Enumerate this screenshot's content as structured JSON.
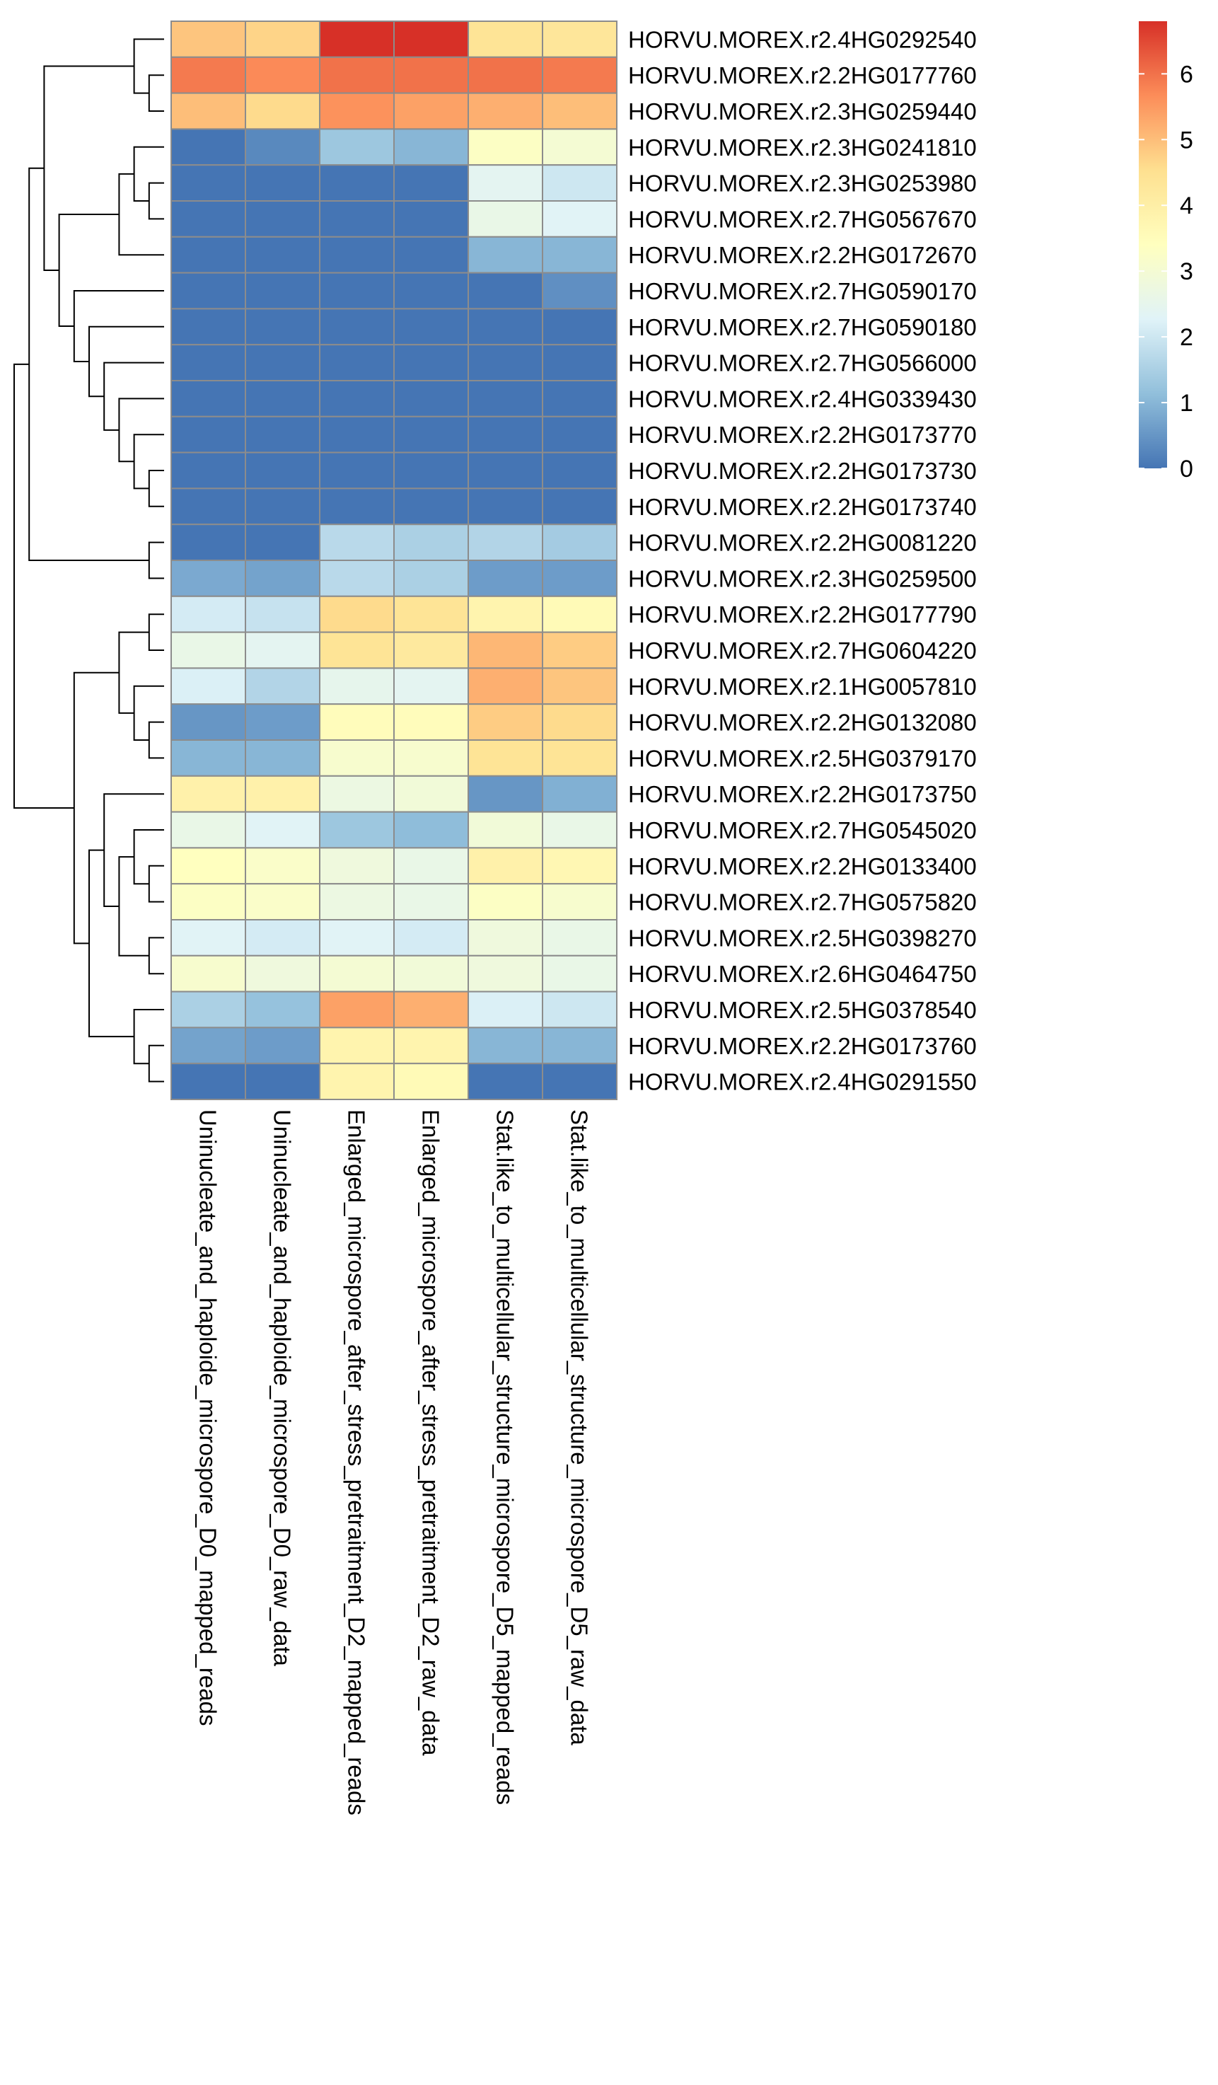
{
  "chart_data": {
    "type": "heatmap",
    "title": "",
    "columns": [
      "Uninucleate_and_haploide_microspore_D0_mapped_reads",
      "Uninucleate_and_haploide_microspore_D0_raw_data",
      "Enlarged_microspore_after_stress_pretraitment_D2_mapped_reads",
      "Enlarged_microspore_after_stress_pretraitment_D2_raw_data",
      "Stat.like_to_multicellular_structure_microspore_D5_mapped_reads",
      "Stat.like_to_multicellular_structure_microspore_D5_raw_data"
    ],
    "rows": [
      "HORVU.MOREX.r2.4HG0292540",
      "HORVU.MOREX.r2.2HG0177760",
      "HORVU.MOREX.r2.3HG0259440",
      "HORVU.MOREX.r2.3HG0241810",
      "HORVU.MOREX.r2.3HG0253980",
      "HORVU.MOREX.r2.7HG0567670",
      "HORVU.MOREX.r2.2HG0172670",
      "HORVU.MOREX.r2.7HG0590170",
      "HORVU.MOREX.r2.7HG0590180",
      "HORVU.MOREX.r2.7HG0566000",
      "HORVU.MOREX.r2.4HG0339430",
      "HORVU.MOREX.r2.2HG0173770",
      "HORVU.MOREX.r2.2HG0173730",
      "HORVU.MOREX.r2.2HG0173740",
      "HORVU.MOREX.r2.2HG0081220",
      "HORVU.MOREX.r2.3HG0259500",
      "HORVU.MOREX.r2.2HG0177790",
      "HORVU.MOREX.r2.7HG0604220",
      "HORVU.MOREX.r2.1HG0057810",
      "HORVU.MOREX.r2.2HG0132080",
      "HORVU.MOREX.r2.5HG0379170",
      "HORVU.MOREX.r2.2HG0173750",
      "HORVU.MOREX.r2.7HG0545020",
      "HORVU.MOREX.r2.2HG0133400",
      "HORVU.MOREX.r2.7HG0575820",
      "HORVU.MOREX.r2.5HG0398270",
      "HORVU.MOREX.r2.6HG0464750",
      "HORVU.MOREX.r2.5HG0378540",
      "HORVU.MOREX.r2.2HG0173760",
      "HORVU.MOREX.r2.4HG0291550"
    ],
    "values": [
      [
        4.9,
        4.7,
        6.8,
        6.8,
        4.4,
        4.3
      ],
      [
        5.9,
        5.7,
        6.0,
        6.0,
        6.0,
        5.9
      ],
      [
        5.0,
        4.6,
        5.6,
        5.4,
        5.2,
        5.0
      ],
      [
        0.0,
        0.3,
        1.3,
        1.0,
        3.3,
        3.0
      ],
      [
        0.0,
        0.0,
        0.0,
        0.0,
        2.4,
        2.0
      ],
      [
        0.0,
        0.0,
        0.0,
        0.0,
        2.6,
        2.3
      ],
      [
        0.0,
        0.0,
        0.0,
        0.0,
        1.0,
        1.0
      ],
      [
        0.0,
        0.0,
        0.0,
        0.0,
        0.0,
        0.4
      ],
      [
        0.0,
        0.0,
        0.0,
        0.0,
        0.0,
        0.0
      ],
      [
        0.0,
        0.0,
        0.0,
        0.0,
        0.0,
        0.0
      ],
      [
        0.0,
        0.0,
        0.0,
        0.0,
        0.0,
        0.0
      ],
      [
        0.0,
        0.0,
        0.0,
        0.0,
        0.0,
        0.0
      ],
      [
        0.0,
        0.0,
        0.0,
        0.0,
        0.0,
        0.0
      ],
      [
        0.0,
        0.0,
        0.0,
        0.0,
        0.0,
        0.0
      ],
      [
        0.0,
        0.0,
        1.7,
        1.5,
        1.6,
        1.4
      ],
      [
        0.8,
        0.7,
        1.7,
        1.5,
        0.6,
        0.6
      ],
      [
        2.1,
        1.9,
        4.6,
        4.4,
        3.8,
        3.6
      ],
      [
        2.6,
        2.4,
        4.4,
        4.2,
        5.1,
        4.8
      ],
      [
        2.2,
        1.6,
        2.5,
        2.4,
        5.2,
        4.9
      ],
      [
        0.5,
        0.6,
        3.5,
        3.5,
        4.8,
        4.6
      ],
      [
        1.0,
        1.0,
        3.1,
        3.1,
        4.4,
        4.4
      ],
      [
        3.9,
        3.9,
        2.7,
        2.9,
        0.5,
        0.9
      ],
      [
        2.6,
        2.3,
        1.3,
        1.1,
        2.9,
        2.6
      ],
      [
        3.4,
        3.2,
        2.8,
        2.6,
        3.9,
        3.7
      ],
      [
        3.3,
        3.2,
        2.7,
        2.6,
        3.3,
        3.1
      ],
      [
        2.3,
        2.1,
        2.3,
        2.1,
        2.8,
        2.6
      ],
      [
        3.1,
        2.8,
        3.0,
        2.9,
        2.8,
        2.6
      ],
      [
        1.5,
        1.2,
        5.4,
        5.2,
        2.2,
        2.0
      ],
      [
        0.7,
        0.6,
        3.8,
        3.8,
        1.0,
        1.0
      ],
      [
        0.0,
        0.0,
        3.8,
        3.6,
        0.0,
        0.0
      ]
    ],
    "colorbar": {
      "min": 0,
      "max": 6.8,
      "ticks": [
        "0",
        "1",
        "2",
        "3",
        "4",
        "5",
        "6"
      ]
    },
    "colors": [
      "#4575B4",
      "#91BFDB",
      "#E0F3F8",
      "#FFFFBF",
      "#FEE090",
      "#FC8D59",
      "#D73027"
    ],
    "cell_border": "#8c8c8c",
    "row_dendrogram": true,
    "legend": "right"
  }
}
